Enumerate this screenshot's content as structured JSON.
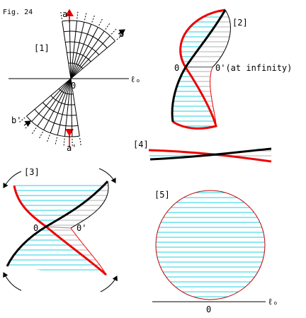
{
  "figure": "Fig. 24",
  "panels": [
    {
      "label": "[1]",
      "labels": [
        "a",
        "b",
        "ℓₒ",
        "0",
        "b'",
        "a'"
      ]
    },
    {
      "label": "[2]",
      "labels": [
        "0",
        "0'(at infinity)"
      ]
    },
    {
      "label": "[4]"
    },
    {
      "label": "[3]",
      "labels": [
        "0",
        "0'"
      ]
    },
    {
      "label": "[5]",
      "labels": [
        "0",
        "ℓₒ"
      ]
    }
  ]
}
